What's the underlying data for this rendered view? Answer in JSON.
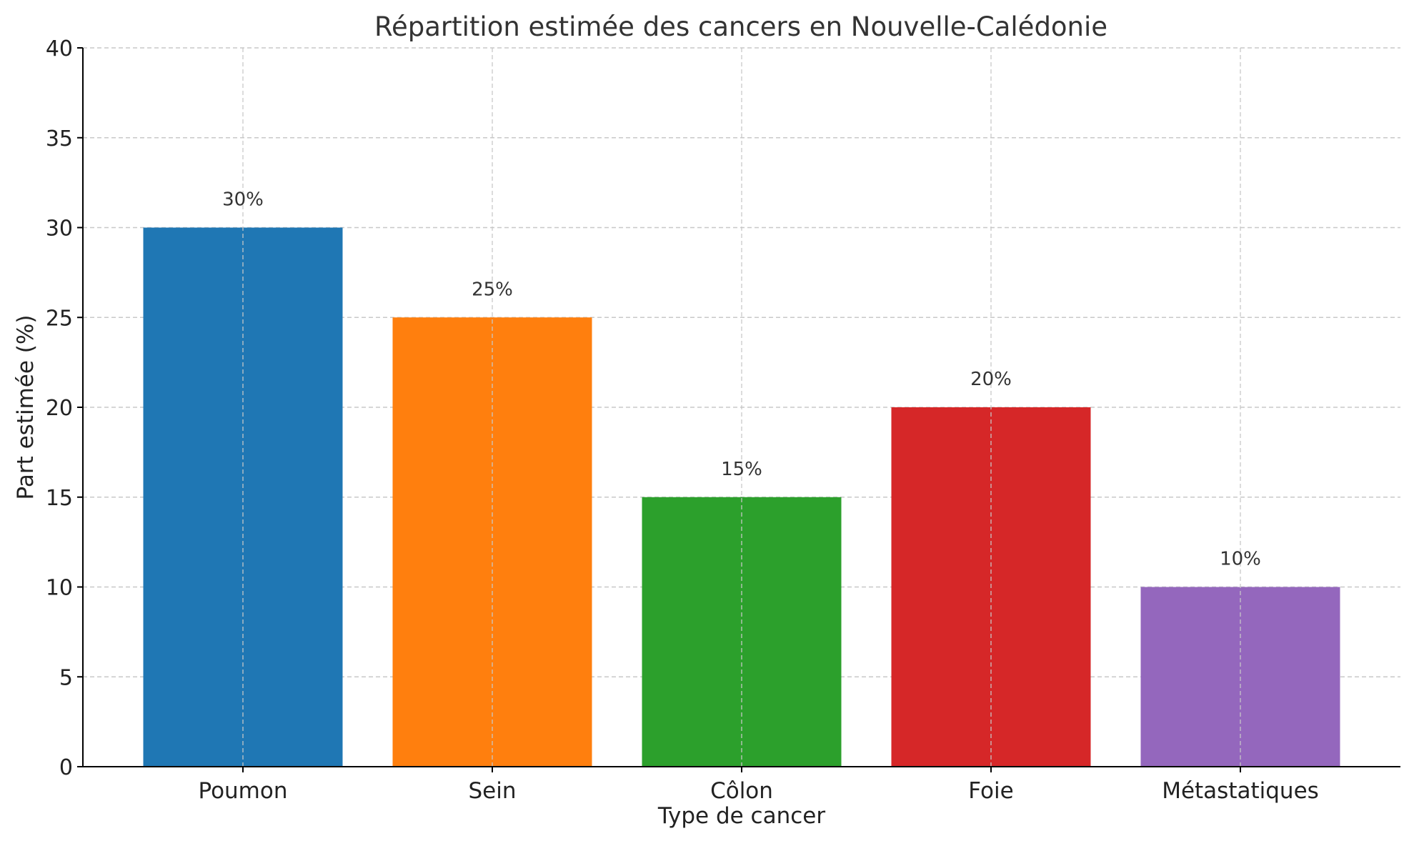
{
  "chart_data": {
    "type": "bar",
    "title": "Répartition estimée des cancers en Nouvelle-Calédonie",
    "xlabel": "Type de cancer",
    "ylabel": "Part estimée (%)",
    "categories": [
      "Poumon",
      "Sein",
      "Côlon",
      "Foie",
      "Métastatiques"
    ],
    "values": [
      30,
      25,
      15,
      20,
      10
    ],
    "data_labels": [
      "30%",
      "25%",
      "15%",
      "20%",
      "10%"
    ],
    "colors": [
      "#1f77b4",
      "#ff7f0e",
      "#2ca02c",
      "#d62728",
      "#9467bd"
    ],
    "ylim": [
      0,
      40
    ],
    "yticks": [
      0,
      5,
      10,
      15,
      20,
      25,
      30,
      35,
      40
    ],
    "grid": true,
    "grid_style": "dashed"
  }
}
